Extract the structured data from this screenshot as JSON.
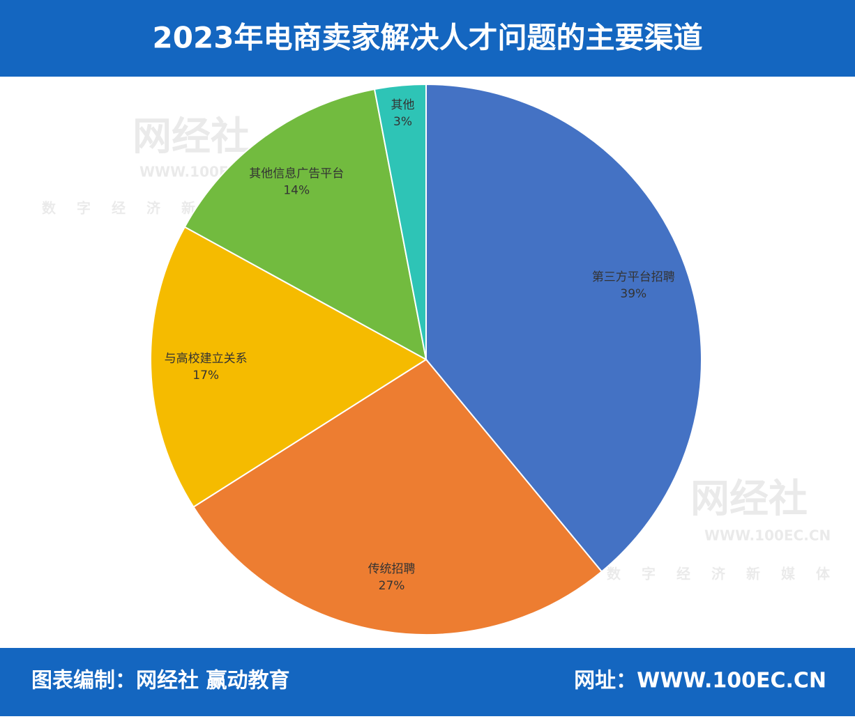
{
  "chart_data": {
    "type": "pie",
    "title": "2023年电商卖家解决人才问题的主要渠道",
    "categories": [
      "第三方平台招聘",
      "传统招聘",
      "与高校建立关系",
      "其他信息广告平台",
      "其他"
    ],
    "values": [
      39,
      27,
      17,
      14,
      3
    ],
    "value_labels": [
      "39%",
      "27%",
      "17%",
      "14%",
      "3%"
    ],
    "colors": [
      "#4472c4",
      "#ed7d31",
      "#f5bb00",
      "#72bb3f",
      "#2ec4b6"
    ]
  },
  "footer": {
    "credit": "图表编制：网经社 赢动教育",
    "website": "网址：WWW.100EC.CN"
  },
  "watermark": {
    "brand": "网经社",
    "url": "WWW.100EC.CN",
    "slogan": "数字经济新媒体"
  }
}
